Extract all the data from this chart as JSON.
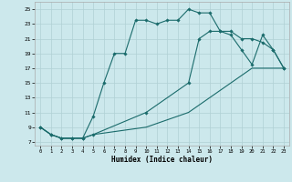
{
  "xlabel": "Humidex (Indice chaleur)",
  "bg_color": "#cce8ec",
  "grid_color": "#b0d0d5",
  "line_color": "#1a6b6b",
  "curve1_x": [
    0,
    1,
    2,
    3,
    4,
    5,
    6,
    7,
    8,
    9,
    10,
    11,
    12,
    13,
    14,
    15,
    16,
    17,
    18,
    19,
    20,
    21,
    22,
    23
  ],
  "curve1_y": [
    9,
    8,
    7.5,
    7.5,
    7.5,
    10.5,
    15.0,
    19.0,
    19.0,
    23.5,
    23.5,
    23.0,
    23.5,
    23.5,
    25.0,
    24.5,
    24.5,
    22.0,
    21.5,
    19.5,
    17.5,
    21.5,
    19.5,
    17.0
  ],
  "curve2_x": [
    0,
    1,
    2,
    3,
    4,
    5,
    10,
    14,
    15,
    16,
    17,
    18,
    19,
    20,
    21,
    22,
    23
  ],
  "curve2_y": [
    9,
    8,
    7.5,
    7.5,
    7.5,
    8.0,
    11.0,
    15.0,
    21.0,
    22.0,
    22.0,
    22.0,
    21.0,
    21.0,
    20.5,
    19.5,
    17.0
  ],
  "curve3_x": [
    0,
    1,
    2,
    3,
    4,
    5,
    10,
    14,
    15,
    16,
    17,
    18,
    19,
    20,
    21,
    22,
    23
  ],
  "curve3_y": [
    9,
    8,
    7.5,
    7.5,
    7.5,
    8.0,
    9.0,
    11.0,
    12.0,
    13.0,
    14.0,
    15.0,
    16.0,
    17.0,
    17.0,
    17.0,
    17.0
  ],
  "xlim": [
    -0.5,
    23.5
  ],
  "ylim": [
    6.5,
    26.0
  ],
  "yticks": [
    7,
    9,
    11,
    13,
    15,
    17,
    19,
    21,
    23,
    25
  ],
  "xticks": [
    0,
    1,
    2,
    3,
    4,
    5,
    6,
    7,
    8,
    9,
    10,
    11,
    12,
    13,
    14,
    15,
    16,
    17,
    18,
    19,
    20,
    21,
    22,
    23
  ]
}
